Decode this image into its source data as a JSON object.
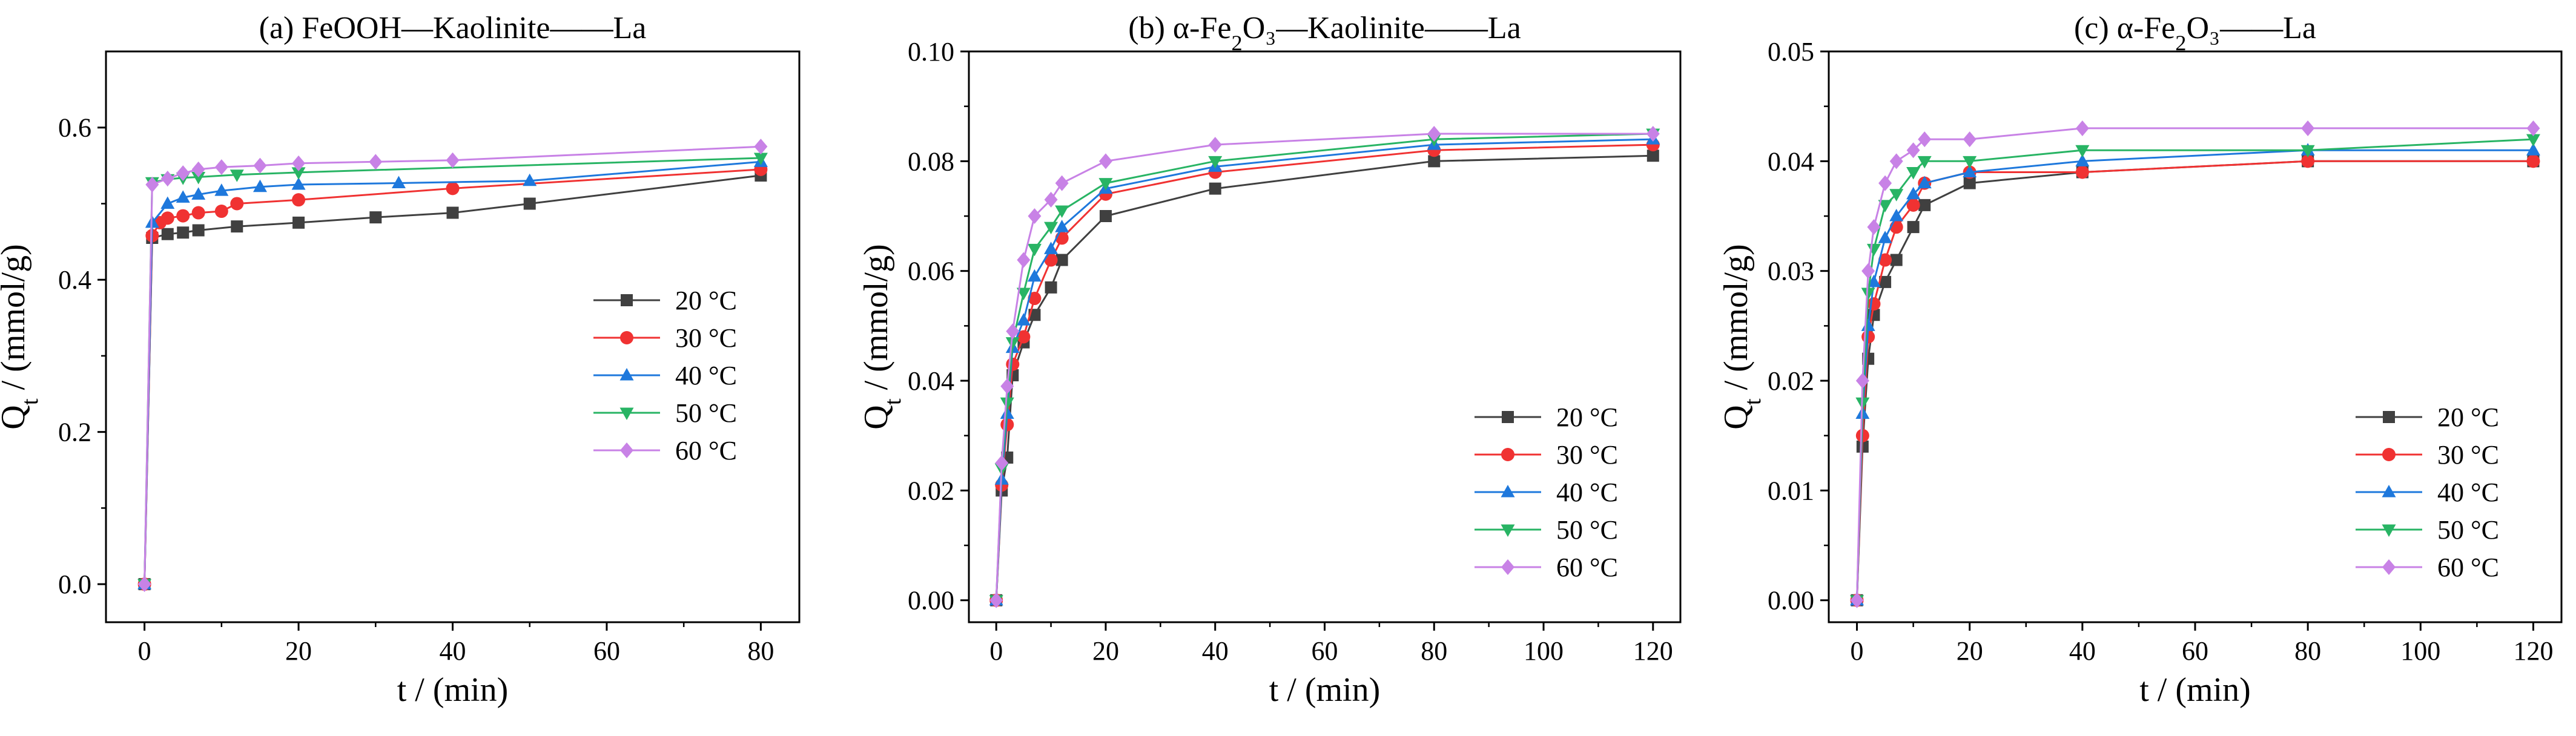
{
  "chart_data": [
    {
      "type": "line",
      "title": {
        "pre": "(a) FeOOH—Kaolinite——La",
        "base": "",
        "sub": "",
        "post": ""
      },
      "xlabel": "t / (min)",
      "ylabel": {
        "base": "Q",
        "sub": "t",
        "rest": " / (mmol/g)"
      },
      "xlim": [
        -5,
        85
      ],
      "ylim": [
        -0.05,
        0.7
      ],
      "xticks": [
        0,
        20,
        40,
        60,
        80
      ],
      "yticks": [
        0.0,
        0.2,
        0.4,
        0.6
      ],
      "ytick_labels": [
        "0.0",
        "0.2",
        "0.4",
        "0.6"
      ],
      "legend_position": "middle-right",
      "series": [
        {
          "name": "20 °C",
          "color": "#404040",
          "marker": "square",
          "x": [
            0,
            1,
            3,
            5,
            7,
            12,
            20,
            30,
            40,
            50,
            80
          ],
          "y": [
            0.0,
            0.455,
            0.46,
            0.462,
            0.465,
            0.47,
            0.475,
            0.482,
            0.488,
            0.5,
            0.537
          ]
        },
        {
          "name": "30 °C",
          "color": "#f03232",
          "marker": "circle",
          "x": [
            0,
            1,
            2,
            3,
            5,
            7,
            10,
            12,
            20,
            40,
            80
          ],
          "y": [
            0.0,
            0.458,
            0.475,
            0.481,
            0.484,
            0.488,
            0.49,
            0.5,
            0.505,
            0.52,
            0.545
          ]
        },
        {
          "name": "40 °C",
          "color": "#1e78dc",
          "marker": "triangle-up",
          "x": [
            0,
            1,
            3,
            5,
            7,
            10,
            15,
            20,
            33,
            50,
            80
          ],
          "y": [
            0.0,
            0.475,
            0.5,
            0.508,
            0.512,
            0.517,
            0.522,
            0.525,
            0.527,
            0.53,
            0.555
          ]
        },
        {
          "name": "50 °C",
          "color": "#28b464",
          "marker": "triangle-down",
          "x": [
            0,
            1,
            3,
            5,
            7,
            12,
            20,
            80
          ],
          "y": [
            0.0,
            0.528,
            0.532,
            0.534,
            0.535,
            0.538,
            0.541,
            0.56
          ]
        },
        {
          "name": "60 °C",
          "color": "#c882e6",
          "marker": "diamond",
          "x": [
            0,
            1,
            3,
            5,
            7,
            10,
            15,
            20,
            30,
            40,
            80
          ],
          "y": [
            0.0,
            0.525,
            0.533,
            0.54,
            0.545,
            0.548,
            0.55,
            0.553,
            0.555,
            0.557,
            0.575
          ]
        }
      ]
    },
    {
      "type": "line",
      "title": {
        "pre": "(b) α-Fe",
        "base": "",
        "sub": "2",
        "post": "O₃—Kaolinite——La"
      },
      "xlabel": "t / (min)",
      "ylabel": {
        "base": "Q",
        "sub": "t",
        "rest": " / (mmol/g)"
      },
      "xlim": [
        -5,
        125
      ],
      "ylim": [
        -0.004,
        0.1
      ],
      "xticks": [
        0,
        20,
        40,
        60,
        80,
        100,
        120
      ],
      "yticks": [
        0.0,
        0.02,
        0.04,
        0.06,
        0.08,
        0.1
      ],
      "ytick_labels": [
        "0.00",
        "0.02",
        "0.04",
        "0.06",
        "0.08",
        "0.10"
      ],
      "legend_position": "lower-right",
      "series": [
        {
          "name": "20 °C",
          "color": "#404040",
          "marker": "square",
          "x": [
            0,
            1,
            2,
            3,
            5,
            7,
            10,
            12,
            20,
            40,
            80,
            120
          ],
          "y": [
            0.0,
            0.02,
            0.026,
            0.041,
            0.047,
            0.052,
            0.057,
            0.062,
            0.07,
            0.075,
            0.08,
            0.081
          ]
        },
        {
          "name": "30 °C",
          "color": "#f03232",
          "marker": "circle",
          "x": [
            0,
            1,
            2,
            3,
            5,
            7,
            10,
            12,
            20,
            40,
            80,
            120
          ],
          "y": [
            0.0,
            0.021,
            0.032,
            0.043,
            0.048,
            0.055,
            0.062,
            0.066,
            0.074,
            0.078,
            0.082,
            0.083
          ]
        },
        {
          "name": "40 °C",
          "color": "#1e78dc",
          "marker": "triangle-up",
          "x": [
            0,
            1,
            2,
            3,
            5,
            7,
            10,
            12,
            20,
            40,
            80,
            120
          ],
          "y": [
            0.0,
            0.022,
            0.034,
            0.046,
            0.051,
            0.059,
            0.064,
            0.068,
            0.075,
            0.079,
            0.083,
            0.084
          ]
        },
        {
          "name": "50 °C",
          "color": "#28b464",
          "marker": "triangle-down",
          "x": [
            0,
            1,
            2,
            3,
            5,
            7,
            10,
            12,
            20,
            40,
            80,
            120
          ],
          "y": [
            0.0,
            0.024,
            0.036,
            0.047,
            0.056,
            0.064,
            0.068,
            0.071,
            0.076,
            0.08,
            0.084,
            0.085
          ]
        },
        {
          "name": "60 °C",
          "color": "#c882e6",
          "marker": "diamond",
          "x": [
            0,
            1,
            2,
            3,
            5,
            7,
            10,
            12,
            20,
            40,
            80,
            120
          ],
          "y": [
            0.0,
            0.025,
            0.039,
            0.049,
            0.062,
            0.07,
            0.073,
            0.076,
            0.08,
            0.083,
            0.085,
            0.085
          ]
        }
      ]
    },
    {
      "type": "line",
      "title": {
        "pre": "(c) α-Fe",
        "base": "",
        "sub": "2",
        "post": "O₃——La"
      },
      "xlabel": "t / (min)",
      "ylabel": {
        "base": "Q",
        "sub": "t",
        "rest": " / (mmol/g)"
      },
      "xlim": [
        -5,
        125
      ],
      "ylim": [
        -0.002,
        0.05
      ],
      "xticks": [
        0,
        20,
        40,
        60,
        80,
        100,
        120
      ],
      "yticks": [
        0.0,
        0.01,
        0.02,
        0.03,
        0.04,
        0.05
      ],
      "ytick_labels": [
        "0.00",
        "0.01",
        "0.02",
        "0.03",
        "0.04",
        "0.05"
      ],
      "legend_position": "lower-right",
      "series": [
        {
          "name": "20 °C",
          "color": "#404040",
          "marker": "square",
          "x": [
            0,
            1,
            2,
            3,
            5,
            7,
            10,
            12,
            20,
            40,
            80,
            120
          ],
          "y": [
            0.0,
            0.014,
            0.022,
            0.026,
            0.029,
            0.031,
            0.034,
            0.036,
            0.038,
            0.039,
            0.04,
            0.04
          ]
        },
        {
          "name": "30 °C",
          "color": "#f03232",
          "marker": "circle",
          "x": [
            0,
            1,
            2,
            3,
            5,
            7,
            10,
            12,
            20,
            40,
            80,
            120
          ],
          "y": [
            0.0,
            0.015,
            0.024,
            0.027,
            0.031,
            0.034,
            0.036,
            0.038,
            0.039,
            0.039,
            0.04,
            0.04
          ]
        },
        {
          "name": "40 °C",
          "color": "#1e78dc",
          "marker": "triangle-up",
          "x": [
            0,
            1,
            2,
            3,
            5,
            7,
            10,
            12,
            20,
            40,
            80,
            120
          ],
          "y": [
            0.0,
            0.017,
            0.025,
            0.029,
            0.033,
            0.035,
            0.037,
            0.038,
            0.039,
            0.04,
            0.041,
            0.041
          ]
        },
        {
          "name": "50 °C",
          "color": "#28b464",
          "marker": "triangle-down",
          "x": [
            0,
            1,
            2,
            3,
            5,
            7,
            10,
            12,
            20,
            40,
            80,
            120
          ],
          "y": [
            0.0,
            0.018,
            0.028,
            0.032,
            0.036,
            0.037,
            0.039,
            0.04,
            0.04,
            0.041,
            0.041,
            0.042
          ]
        },
        {
          "name": "60 °C",
          "color": "#c882e6",
          "marker": "diamond",
          "x": [
            0,
            1,
            2,
            3,
            5,
            7,
            10,
            12,
            20,
            40,
            80,
            120
          ],
          "y": [
            0.0,
            0.02,
            0.03,
            0.034,
            0.038,
            0.04,
            0.041,
            0.042,
            0.042,
            0.043,
            0.043,
            0.043
          ]
        }
      ]
    }
  ]
}
